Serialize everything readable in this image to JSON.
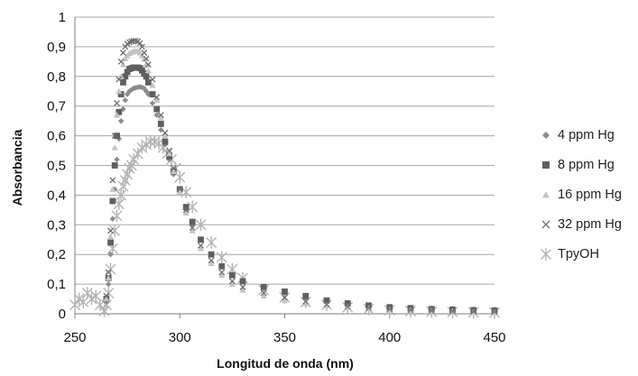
{
  "chart_data": {
    "type": "scatter",
    "title": "",
    "xlabel": "Longitud de onda (nm)",
    "ylabel": "Absorbancia",
    "xlim": [
      250,
      450
    ],
    "ylim": [
      0,
      1
    ],
    "x_ticks": [
      "250",
      "300",
      "350",
      "400",
      "450"
    ],
    "y_ticks": [
      "0",
      "0,1",
      "0,2",
      "0,3",
      "0,4",
      "0,5",
      "0,6",
      "0,7",
      "0,8",
      "0,9",
      "1"
    ],
    "grid": "horizontal",
    "legend_position": "right",
    "series": [
      {
        "name": "4 ppm Hg",
        "marker": "diamond",
        "color": "#8c8c8c",
        "peak_x": 281,
        "peak_y": 0.765,
        "x": [
          265,
          266,
          267,
          268,
          269,
          270,
          271,
          272,
          273,
          274,
          275,
          276,
          277,
          278,
          279,
          280,
          281,
          282,
          283,
          284,
          285,
          287,
          289,
          291,
          293,
          295,
          297,
          300,
          303,
          306,
          310,
          315,
          320,
          325,
          330,
          340,
          350,
          360,
          370,
          380,
          390,
          400,
          410,
          420,
          430,
          440,
          450
        ],
        "y": [
          0.04,
          0.1,
          0.2,
          0.32,
          0.42,
          0.52,
          0.59,
          0.65,
          0.69,
          0.72,
          0.74,
          0.75,
          0.755,
          0.76,
          0.762,
          0.764,
          0.765,
          0.763,
          0.76,
          0.75,
          0.74,
          0.71,
          0.67,
          0.62,
          0.57,
          0.52,
          0.47,
          0.41,
          0.35,
          0.3,
          0.25,
          0.2,
          0.16,
          0.13,
          0.11,
          0.09,
          0.07,
          0.055,
          0.04,
          0.03,
          0.025,
          0.02,
          0.018,
          0.015,
          0.013,
          0.011,
          0.01
        ]
      },
      {
        "name": "8 ppm Hg",
        "marker": "square",
        "color": "#5f5f5f",
        "peak_x": 280,
        "peak_y": 0.83,
        "x": [
          265,
          266,
          267,
          268,
          269,
          270,
          271,
          272,
          273,
          274,
          275,
          276,
          277,
          278,
          279,
          280,
          281,
          282,
          283,
          284,
          285,
          287,
          289,
          291,
          293,
          295,
          297,
          300,
          303,
          306,
          310,
          315,
          320,
          325,
          330,
          340,
          350,
          360,
          370,
          380,
          390,
          400,
          410,
          420,
          430,
          440,
          450
        ],
        "y": [
          0.05,
          0.12,
          0.24,
          0.38,
          0.5,
          0.6,
          0.68,
          0.74,
          0.78,
          0.8,
          0.815,
          0.825,
          0.828,
          0.83,
          0.83,
          0.83,
          0.828,
          0.82,
          0.81,
          0.8,
          0.78,
          0.74,
          0.69,
          0.64,
          0.58,
          0.53,
          0.48,
          0.42,
          0.36,
          0.31,
          0.25,
          0.2,
          0.16,
          0.13,
          0.11,
          0.09,
          0.075,
          0.06,
          0.045,
          0.035,
          0.028,
          0.022,
          0.019,
          0.016,
          0.014,
          0.012,
          0.011
        ]
      },
      {
        "name": "16 ppm Hg",
        "marker": "triangle",
        "color": "#c4c4c4",
        "peak_x": 280,
        "peak_y": 0.885,
        "x": [
          265,
          266,
          267,
          268,
          269,
          270,
          271,
          272,
          273,
          274,
          275,
          276,
          277,
          278,
          279,
          280,
          281,
          282,
          283,
          284,
          285,
          287,
          289,
          291,
          293,
          295,
          297,
          300,
          303,
          306,
          310,
          315,
          320,
          325,
          330,
          340,
          350,
          360,
          370,
          380,
          390,
          400,
          410,
          420,
          430,
          440,
          450
        ],
        "y": [
          0.05,
          0.12,
          0.26,
          0.42,
          0.56,
          0.67,
          0.75,
          0.8,
          0.84,
          0.86,
          0.87,
          0.878,
          0.882,
          0.885,
          0.885,
          0.885,
          0.88,
          0.87,
          0.86,
          0.84,
          0.82,
          0.77,
          0.72,
          0.66,
          0.6,
          0.54,
          0.48,
          0.41,
          0.34,
          0.28,
          0.22,
          0.17,
          0.13,
          0.1,
          0.08,
          0.06,
          0.045,
          0.035,
          0.028,
          0.022,
          0.018,
          0.014,
          0.012,
          0.01,
          0.008,
          0.006,
          0.005
        ]
      },
      {
        "name": "32 ppm Hg",
        "marker": "x",
        "color": "#6e6e6e",
        "peak_x": 279,
        "peak_y": 0.92,
        "x": [
          265,
          266,
          267,
          268,
          269,
          270,
          271,
          272,
          273,
          274,
          275,
          276,
          277,
          278,
          279,
          280,
          281,
          282,
          283,
          284,
          285,
          287,
          289,
          291,
          293,
          295,
          297,
          300,
          303,
          306,
          310,
          315,
          320,
          325,
          330,
          340,
          350,
          360,
          370,
          380,
          390,
          400,
          410,
          420,
          430,
          440,
          450
        ],
        "y": [
          0.06,
          0.14,
          0.28,
          0.45,
          0.6,
          0.71,
          0.79,
          0.85,
          0.88,
          0.9,
          0.91,
          0.915,
          0.918,
          0.92,
          0.92,
          0.918,
          0.912,
          0.9,
          0.88,
          0.86,
          0.84,
          0.79,
          0.73,
          0.67,
          0.61,
          0.55,
          0.49,
          0.42,
          0.35,
          0.29,
          0.23,
          0.18,
          0.14,
          0.11,
          0.09,
          0.07,
          0.055,
          0.042,
          0.032,
          0.025,
          0.02,
          0.016,
          0.013,
          0.011,
          0.009,
          0.008,
          0.007
        ]
      },
      {
        "name": "TpyOH",
        "marker": "asterisk",
        "color": "#b4b4b4",
        "peak_x": 287,
        "peak_y": 0.58,
        "x": [
          250,
          252,
          254,
          256,
          258,
          260,
          262,
          264,
          265,
          266,
          267,
          268,
          269,
          270,
          271,
          272,
          273,
          274,
          275,
          276,
          277,
          278,
          280,
          282,
          284,
          286,
          288,
          290,
          292,
          294,
          296,
          298,
          300,
          303,
          306,
          310,
          315,
          320,
          325,
          330,
          340,
          350,
          360,
          370,
          380,
          390,
          400,
          410,
          420,
          430,
          440,
          450
        ],
        "y": [
          0.03,
          0.05,
          0.04,
          0.07,
          0.05,
          0.06,
          0.03,
          0.01,
          0.03,
          0.07,
          0.15,
          0.22,
          0.28,
          0.33,
          0.37,
          0.4,
          0.43,
          0.45,
          0.47,
          0.49,
          0.5,
          0.52,
          0.54,
          0.56,
          0.57,
          0.58,
          0.58,
          0.575,
          0.56,
          0.54,
          0.52,
          0.49,
          0.46,
          0.41,
          0.36,
          0.3,
          0.24,
          0.19,
          0.15,
          0.12,
          0.08,
          0.055,
          0.04,
          0.03,
          0.022,
          0.016,
          0.012,
          0.009,
          0.007,
          0.006,
          0.005,
          0.004
        ]
      }
    ]
  }
}
